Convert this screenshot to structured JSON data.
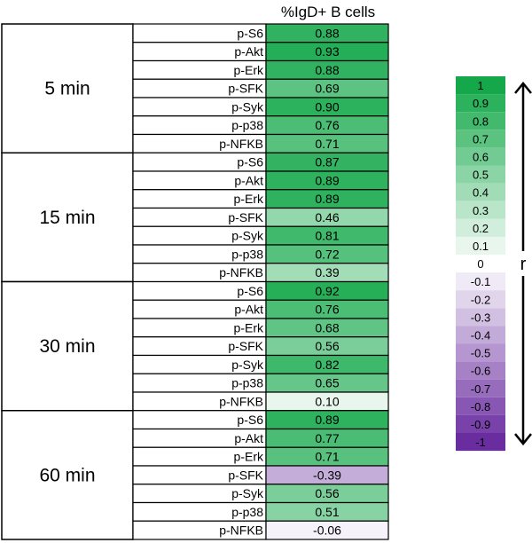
{
  "chart_data": {
    "type": "heatmap",
    "column_header": "%IgD+ B cells",
    "groups": [
      {
        "label": "5 min",
        "rows": [
          {
            "label": "p-S6",
            "value": 0.88
          },
          {
            "label": "p-Akt",
            "value": 0.93
          },
          {
            "label": "p-Erk",
            "value": 0.88
          },
          {
            "label": "p-SFK",
            "value": 0.69
          },
          {
            "label": "p-Syk",
            "value": 0.9
          },
          {
            "label": "p-p38",
            "value": 0.76
          },
          {
            "label": "p-NFKB",
            "value": 0.71
          }
        ]
      },
      {
        "label": "15 min",
        "rows": [
          {
            "label": "p-S6",
            "value": 0.87
          },
          {
            "label": "p-Akt",
            "value": 0.89
          },
          {
            "label": "p-Erk",
            "value": 0.89
          },
          {
            "label": "p-SFK",
            "value": 0.46
          },
          {
            "label": "p-Syk",
            "value": 0.81
          },
          {
            "label": "p-p38",
            "value": 0.72
          },
          {
            "label": "p-NFKB",
            "value": 0.39
          }
        ]
      },
      {
        "label": "30 min",
        "rows": [
          {
            "label": "p-S6",
            "value": 0.92
          },
          {
            "label": "p-Akt",
            "value": 0.76
          },
          {
            "label": "p-Erk",
            "value": 0.68
          },
          {
            "label": "p-SFK",
            "value": 0.56
          },
          {
            "label": "p-Syk",
            "value": 0.82
          },
          {
            "label": "p-p38",
            "value": 0.65
          },
          {
            "label": "p-NFKB",
            "value": 0.1
          }
        ]
      },
      {
        "label": "60 min",
        "rows": [
          {
            "label": "p-S6",
            "value": 0.89
          },
          {
            "label": "p-Akt",
            "value": 0.77
          },
          {
            "label": "p-Erk",
            "value": 0.71
          },
          {
            "label": "p-SFK",
            "value": -0.39
          },
          {
            "label": "p-Syk",
            "value": 0.56
          },
          {
            "label": "p-p38",
            "value": 0.51
          },
          {
            "label": "p-NFKB",
            "value": -0.06
          }
        ]
      }
    ],
    "color_scale": {
      "label": "r",
      "range": [
        -1,
        1
      ],
      "ticks": [
        "1",
        "0.9",
        "0.8",
        "0.7",
        "0.6",
        "0.5",
        "0.4",
        "0.3",
        "0.2",
        "0.1",
        "0",
        "-0.1",
        "-0.2",
        "-0.3",
        "-0.4",
        "-0.5",
        "-0.6",
        "-0.7",
        "-0.8",
        "-0.9",
        "-1"
      ],
      "positive_color": "#14a84a",
      "negative_color": "#6a2da0",
      "zero_color": "#ffffff"
    }
  }
}
